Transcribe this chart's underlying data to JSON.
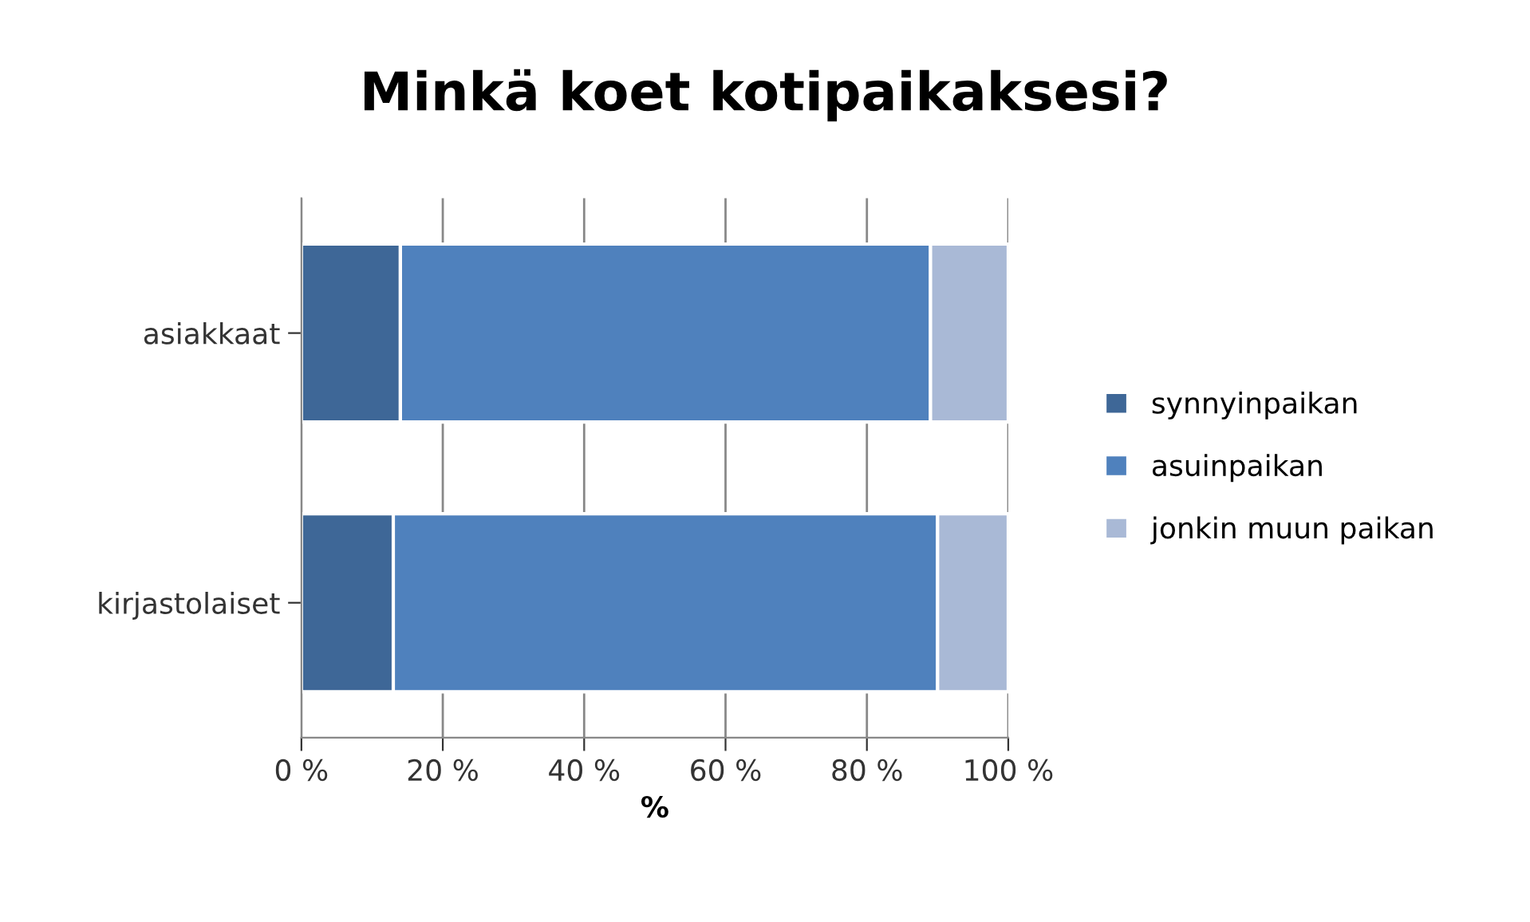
{
  "chart_data": {
    "type": "bar",
    "orientation": "horizontal",
    "stacked": true,
    "title": "Minkä koet kotipaikaksesi?",
    "xlabel": "%",
    "categories": [
      "asiakkaat",
      "kirjastolaiset"
    ],
    "series": [
      {
        "name": "synnyinpaikan",
        "color": "#3e6797",
        "values": [
          14,
          13
        ]
      },
      {
        "name": "asuinpaikan",
        "color": "#4f81bd",
        "values": [
          75,
          77
        ]
      },
      {
        "name": "jonkin muun paikan",
        "color": "#a9b9d6",
        "values": [
          11,
          10
        ]
      }
    ],
    "xlim": [
      0,
      100
    ],
    "xticks": [
      {
        "value": 0,
        "label": "0 %"
      },
      {
        "value": 20,
        "label": "20 %"
      },
      {
        "value": 40,
        "label": "40 %"
      },
      {
        "value": 60,
        "label": "60 %"
      },
      {
        "value": 80,
        "label": "80 %"
      },
      {
        "value": 100,
        "label": "100 %"
      }
    ],
    "grid": "x",
    "legend": "right"
  }
}
